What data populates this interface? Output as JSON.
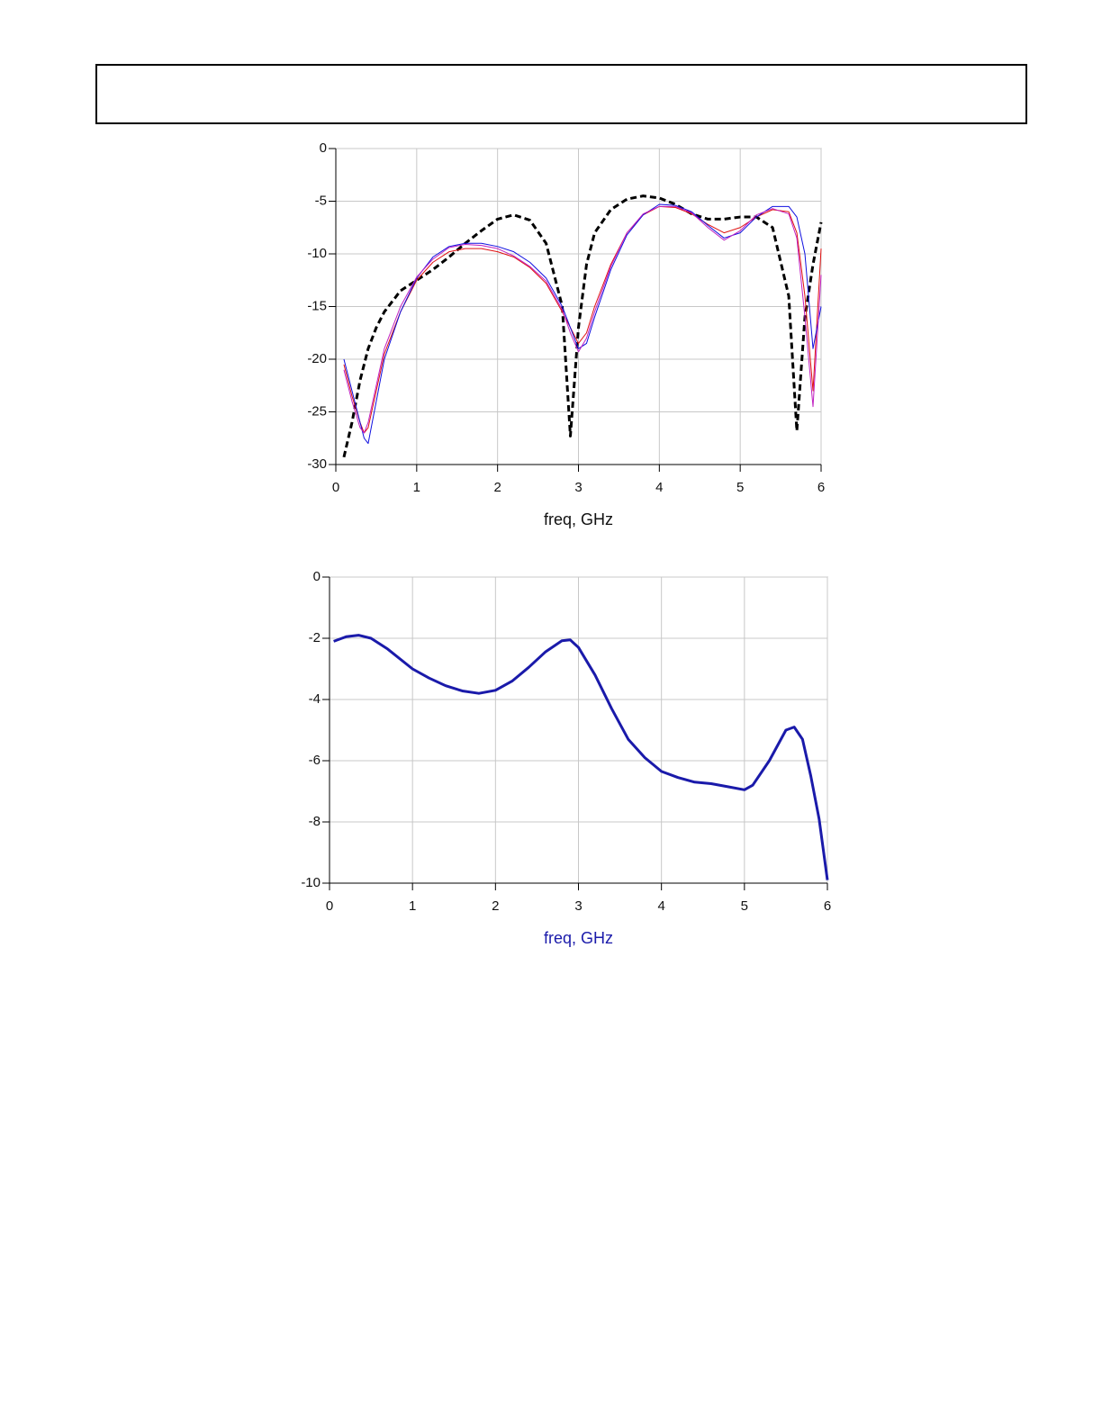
{
  "chart_data": [
    {
      "type": "line",
      "xlabel": "freq, GHz",
      "grid": true,
      "x": [
        0.1,
        0.2,
        0.3,
        0.35,
        0.4,
        0.5,
        0.6,
        0.8,
        1.0,
        1.2,
        1.4,
        1.6,
        1.8,
        2.0,
        2.2,
        2.4,
        2.6,
        2.8,
        2.9,
        3.0,
        3.1,
        3.2,
        3.4,
        3.6,
        3.8,
        4.0,
        4.2,
        4.4,
        4.6,
        4.8,
        5.0,
        5.2,
        5.4,
        5.6,
        5.7,
        5.8,
        5.9,
        6.0
      ],
      "xlim": [
        0,
        6
      ],
      "xticks": [
        0,
        1,
        2,
        3,
        4,
        5,
        6
      ],
      "ylim": [
        -30,
        0
      ],
      "yticks": [
        -30,
        -25,
        -20,
        -15,
        -10,
        -5,
        0
      ],
      "series": [
        {
          "color": "#000000",
          "line_style": "dashed",
          "width": 3,
          "values": [
            -29.3,
            -26,
            -22,
            -20.5,
            -19,
            -17,
            -15.5,
            -13.5,
            -12.5,
            -11.5,
            -10.3,
            -9,
            -7.8,
            -6.7,
            -6.3,
            -6.8,
            -9,
            -15,
            -27.3,
            -17,
            -11,
            -8,
            -5.8,
            -4.8,
            -4.5,
            -4.7,
            -5.3,
            -6.2,
            -6.7,
            -6.7,
            -6.5,
            -6.5,
            -7.5,
            -14,
            -26.8,
            -16,
            -11,
            -7
          ]
        },
        {
          "color": "#e01010",
          "line_style": "solid",
          "width": 1,
          "values": [
            -20.5,
            -23.5,
            -26,
            -27,
            -26.5,
            -23,
            -19.5,
            -15.5,
            -12.5,
            -10.8,
            -9.8,
            -9.5,
            -9.5,
            -9.8,
            -10.3,
            -11.3,
            -12.8,
            -15.5,
            -17,
            -18.5,
            -17.5,
            -15,
            -11,
            -8,
            -6.3,
            -5.5,
            -5.6,
            -6.2,
            -7.2,
            -8,
            -7.5,
            -6.5,
            -5.8,
            -6,
            -8,
            -14,
            -23,
            -9.5
          ]
        },
        {
          "color": "#1010e0",
          "line_style": "solid",
          "width": 1,
          "values": [
            -20,
            -23,
            -26,
            -27.5,
            -28,
            -24,
            -20,
            -15.5,
            -12.3,
            -10.3,
            -9.3,
            -9,
            -9,
            -9.3,
            -9.8,
            -10.8,
            -12.3,
            -15,
            -17,
            -19,
            -18.5,
            -16,
            -11.5,
            -8.2,
            -6.3,
            -5.3,
            -5.4,
            -6,
            -7.3,
            -8.5,
            -8,
            -6.5,
            -5.5,
            -5.5,
            -6.5,
            -10,
            -19,
            -15
          ]
        },
        {
          "color": "#c020c0",
          "line_style": "solid",
          "width": 1,
          "values": [
            -21,
            -24,
            -26.5,
            -27,
            -26,
            -22.5,
            -19,
            -15,
            -12.2,
            -10.5,
            -9.4,
            -9.1,
            -9.2,
            -9.5,
            -10.2,
            -11.2,
            -12.6,
            -15.3,
            -17.5,
            -19.3,
            -18,
            -15.5,
            -11.2,
            -8,
            -6.2,
            -5.5,
            -5.5,
            -6.1,
            -7.5,
            -8.7,
            -7.8,
            -6.3,
            -5.7,
            -6.2,
            -8.5,
            -16,
            -24.5,
            -12
          ]
        }
      ]
    },
    {
      "type": "line",
      "xlabel": "freq, GHz",
      "xlabel_color": "#1a1aaa",
      "grid": true,
      "x": [
        0.05,
        0.2,
        0.35,
        0.5,
        0.7,
        1.0,
        1.2,
        1.4,
        1.6,
        1.8,
        2.0,
        2.2,
        2.4,
        2.6,
        2.8,
        2.9,
        3.0,
        3.2,
        3.4,
        3.6,
        3.8,
        4.0,
        4.2,
        4.4,
        4.6,
        4.8,
        5.0,
        5.1,
        5.3,
        5.5,
        5.6,
        5.7,
        5.8,
        5.9,
        6.0
      ],
      "xlim": [
        0,
        6
      ],
      "xticks": [
        0,
        1,
        2,
        3,
        4,
        5,
        6
      ],
      "ylim": [
        -10,
        0
      ],
      "yticks": [
        -10,
        -8,
        -6,
        -4,
        -2,
        0
      ],
      "series": [
        {
          "color": "#1a1aaa",
          "line_style": "solid",
          "width": 3,
          "values": [
            -2.1,
            -1.95,
            -1.9,
            -2.0,
            -2.35,
            -3.0,
            -3.3,
            -3.55,
            -3.72,
            -3.8,
            -3.7,
            -3.4,
            -2.95,
            -2.45,
            -2.08,
            -2.05,
            -2.3,
            -3.2,
            -4.3,
            -5.3,
            -5.9,
            -6.35,
            -6.55,
            -6.7,
            -6.75,
            -6.85,
            -6.95,
            -6.8,
            -6.0,
            -5.0,
            -4.9,
            -5.3,
            -6.5,
            -7.9,
            -9.9
          ]
        }
      ]
    }
  ]
}
